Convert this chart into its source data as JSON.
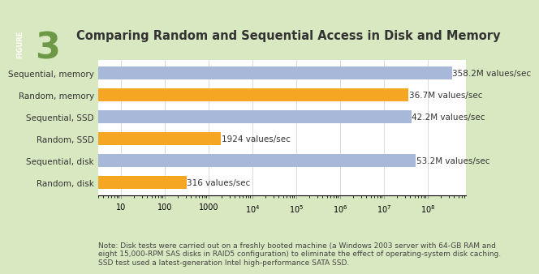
{
  "title": "Comparing Random and Sequential Access in Disk and Memory",
  "categories": [
    "Random, disk",
    "Sequential, disk",
    "Random, SSD",
    "Sequential, SSD",
    "Random, memory",
    "Sequential, memory"
  ],
  "values": [
    316,
    53200000,
    1924,
    42200000,
    36700000,
    358200000
  ],
  "labels": [
    "316 values/sec",
    "53.2M values/sec",
    "1924 values/sec",
    "42.2M values/sec",
    "36.7M values/sec",
    "358.2M values/sec"
  ],
  "colors": [
    "#F5A623",
    "#A8B8D8",
    "#F5A623",
    "#A8B8D8",
    "#F5A623",
    "#A8B8D8"
  ],
  "xlim_min": 3,
  "xlim_max": 300000000.0,
  "xticks": [
    10,
    100,
    1000,
    10000,
    100000,
    1000000,
    10000000,
    100000000
  ],
  "xtick_labels": [
    "10",
    "100",
    "1000",
    "$10^4$",
    "$10^5$",
    "$10^6$",
    "$10^7$",
    "$10^8$"
  ],
  "background_outer": "#D8E8C0",
  "background_chart": "#FFFFFF",
  "note": "Note: Disk tests were carried out on a freshly booted machine (a Windows 2003 server with 64-GB RAM and\neight 15,000-RPM SAS disks in RAID5 configuration) to eliminate the effect of operating-system disk caching.\nSSD test used a latest-generation Intel high-performance SATA SSD.",
  "figure_label": "3",
  "figure_text": "FIGURE",
  "title_fontsize": 10.5,
  "bar_height": 0.6,
  "label_fontsize": 7.5,
  "tick_fontsize": 7,
  "note_fontsize": 6.5,
  "cat_fontsize": 7.5,
  "figure_box_color": "#8DB870",
  "figure_number_color": "#5A8A30"
}
